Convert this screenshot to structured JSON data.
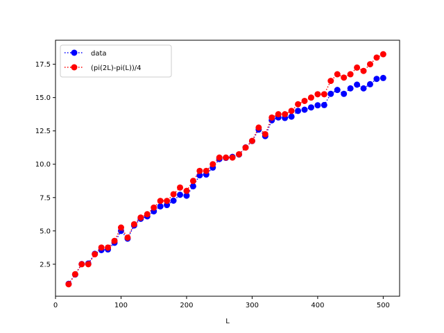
{
  "chart_data": {
    "type": "line",
    "title": "",
    "xlabel": "L",
    "ylabel": "",
    "xlim": [
      0,
      525
    ],
    "ylim": [
      0.1,
      19.3
    ],
    "x_ticks": [
      0,
      100,
      200,
      300,
      400,
      500
    ],
    "y_ticks": [
      2.5,
      5.0,
      7.5,
      10.0,
      12.5,
      15.0,
      17.5
    ],
    "x_tick_labels": [
      "0",
      "100",
      "200",
      "300",
      "400",
      "500"
    ],
    "y_tick_labels": [
      "2.5",
      "5.0",
      "7.5",
      "10.0",
      "12.5",
      "15.0",
      "17.5"
    ],
    "grid": false,
    "legend_position": "upper-left",
    "x": [
      20,
      30,
      40,
      50,
      60,
      70,
      80,
      90,
      100,
      110,
      120,
      130,
      140,
      150,
      160,
      170,
      180,
      190,
      200,
      210,
      220,
      230,
      240,
      250,
      260,
      270,
      280,
      290,
      300,
      310,
      320,
      330,
      340,
      350,
      360,
      370,
      380,
      390,
      400,
      410,
      420,
      430,
      440,
      450,
      460,
      470,
      480,
      490,
      500
    ],
    "series": [
      {
        "name": "data",
        "color": "#0000ff",
        "linestyle": "dotted",
        "marker": "circle",
        "values": [
          1.03,
          1.73,
          2.51,
          2.55,
          3.28,
          3.56,
          3.61,
          4.11,
          5.0,
          4.42,
          5.41,
          5.91,
          6.09,
          6.47,
          6.84,
          6.94,
          7.27,
          7.71,
          7.64,
          8.35,
          9.17,
          9.23,
          9.75,
          10.39,
          10.48,
          10.55,
          10.73,
          11.26,
          11.74,
          12.6,
          12.11,
          13.29,
          13.51,
          13.47,
          13.57,
          14.0,
          14.09,
          14.26,
          14.42,
          14.44,
          15.28,
          15.57,
          15.28,
          15.69,
          15.97,
          15.69,
          16.0,
          16.4,
          16.47
        ]
      },
      {
        "name": "(pi(2L)-pi(L))/4",
        "color": "#ff0000",
        "linestyle": "dotted",
        "marker": "circle",
        "values": [
          1.0,
          1.75,
          2.5,
          2.5,
          3.25,
          3.75,
          3.75,
          4.25,
          5.25,
          4.5,
          5.5,
          6.0,
          6.25,
          6.75,
          7.25,
          7.25,
          7.75,
          8.25,
          8.0,
          8.75,
          9.5,
          9.5,
          10.0,
          10.5,
          10.5,
          10.5,
          10.75,
          11.25,
          11.75,
          12.75,
          12.25,
          13.5,
          13.75,
          13.75,
          14.0,
          14.5,
          14.75,
          15.0,
          15.25,
          15.25,
          16.25,
          16.75,
          16.5,
          16.75,
          17.25,
          17.0,
          17.5,
          18.0,
          18.25
        ]
      }
    ]
  }
}
